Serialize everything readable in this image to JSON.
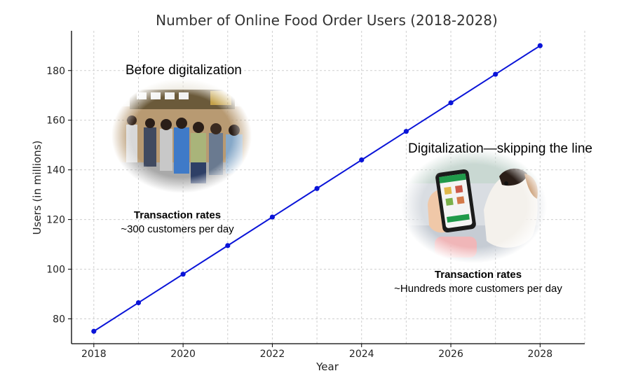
{
  "chart_data": {
    "type": "line",
    "title": "Number of Online Food Order Users (2018-2028)",
    "xlabel": "Year",
    "ylabel": "Users (in millions)",
    "xlim": [
      2017.5,
      2029.0
    ],
    "ylim": [
      70,
      196
    ],
    "xticks": [
      2018,
      2020,
      2022,
      2024,
      2026,
      2028
    ],
    "yticks": [
      80,
      100,
      120,
      140,
      160,
      180
    ],
    "grid": true,
    "series": [
      {
        "color": "#0a14d8",
        "x": [
          2018,
          2019,
          2020,
          2021,
          2022,
          2023,
          2024,
          2025,
          2026,
          2027,
          2028
        ],
        "y": [
          75.0,
          86.5,
          98.0,
          109.5,
          121.0,
          132.5,
          144.0,
          155.5,
          167.0,
          178.5,
          190.0
        ]
      }
    ]
  },
  "annotations": {
    "before": {
      "heading": "Before digitalization",
      "rate_label": "Transaction rates",
      "rate_value": "~300 customers per day",
      "image": "photo-people-queueing"
    },
    "after": {
      "heading": "Digitalization—skipping the line",
      "rate_label": "Transaction rates",
      "rate_value": "~Hundreds more customers per day",
      "image": "photo-phone-ordering-with-dog"
    }
  }
}
